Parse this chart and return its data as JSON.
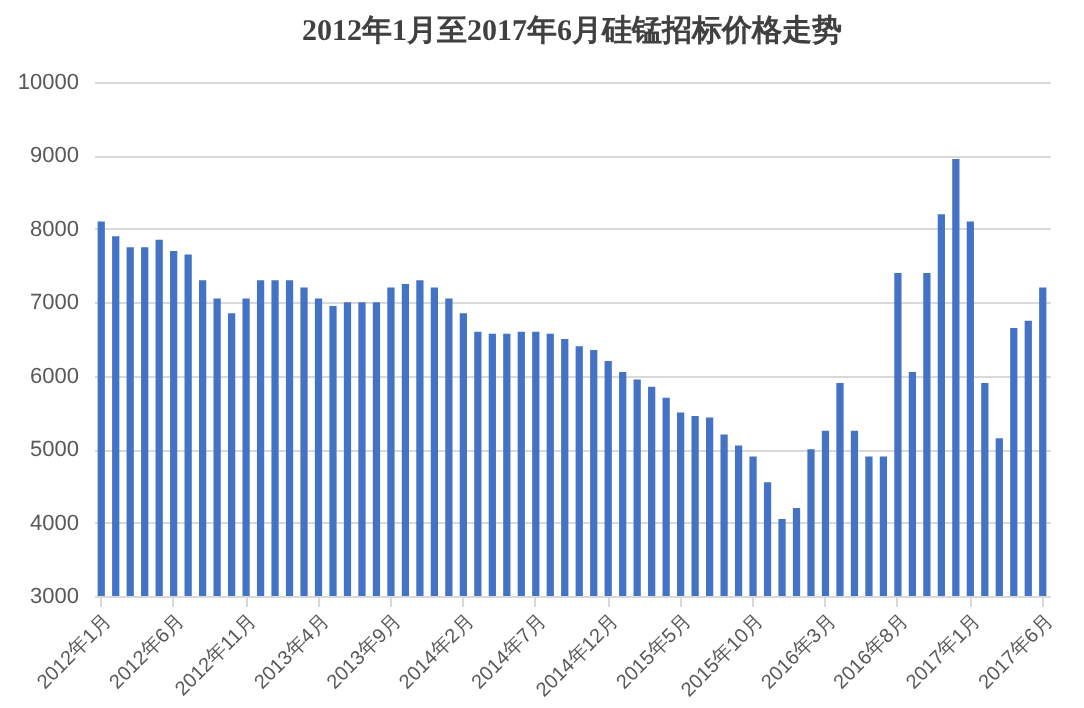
{
  "chart_data": {
    "type": "bar",
    "title": "2012年1月至2017年6月硅锰招标价格走势",
    "categories": [
      "2012年1月",
      null,
      null,
      null,
      null,
      "2012年6月",
      null,
      null,
      null,
      null,
      "2012年11月",
      null,
      null,
      null,
      null,
      "2013年4月",
      null,
      null,
      null,
      null,
      "2013年9月",
      null,
      null,
      null,
      null,
      "2014年2月",
      null,
      null,
      null,
      null,
      "2014年7月",
      null,
      null,
      null,
      null,
      "2014年12月",
      null,
      null,
      null,
      null,
      "2015年5月",
      null,
      null,
      null,
      null,
      "2015年10月",
      null,
      null,
      null,
      null,
      "2016年3月",
      null,
      null,
      null,
      null,
      "2016年8月",
      null,
      null,
      null,
      null,
      "2017年1月",
      null,
      null,
      null,
      null,
      "2017年6月"
    ],
    "values": [
      8100,
      7900,
      7750,
      7750,
      7850,
      7700,
      7650,
      7300,
      7050,
      6850,
      7050,
      7300,
      7300,
      7300,
      7200,
      7050,
      6950,
      7000,
      7000,
      7000,
      7200,
      7250,
      7300,
      7200,
      7050,
      6850,
      6600,
      6570,
      6570,
      6600,
      6600,
      6570,
      6500,
      6400,
      6350,
      6200,
      6050,
      5950,
      5850,
      5700,
      5500,
      5450,
      5430,
      5200,
      5050,
      4900,
      4550,
      4050,
      4200,
      5000,
      5250,
      5900,
      5250,
      4900,
      4900,
      7400,
      6050,
      7400,
      8200,
      8950,
      8100,
      5900,
      5150,
      6650,
      6750,
      7200
    ],
    "color": "#4472c4",
    "ylim": [
      3000,
      10000
    ],
    "yticks": [
      3000,
      4000,
      5000,
      6000,
      7000,
      8000,
      9000,
      10000
    ],
    "grid": "y"
  }
}
